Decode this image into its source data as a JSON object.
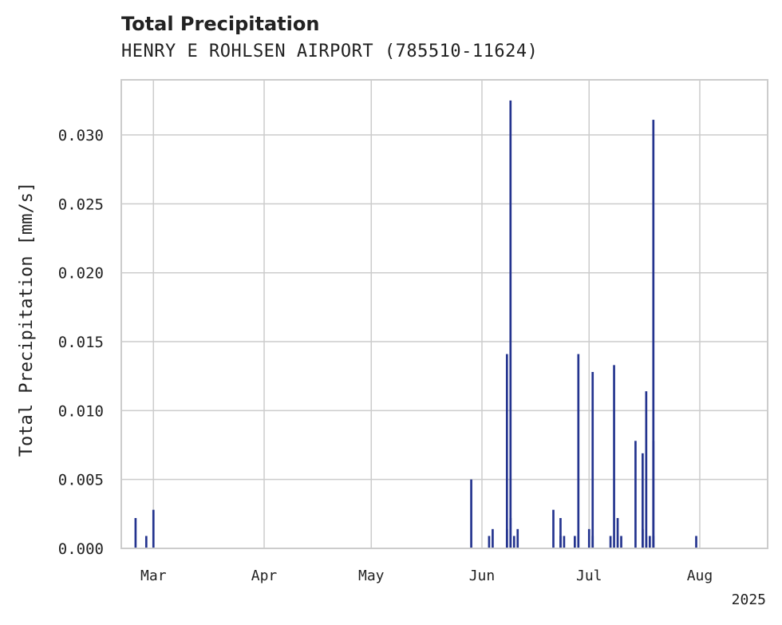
{
  "chart_data": {
    "type": "bar",
    "title": "Total Precipitation",
    "subtitle": "HENRY E ROHLSEN AIRPORT (785510-11624)",
    "xlabel": "",
    "ylabel": "Total Precipitation [mm/s]",
    "year_label": "2025",
    "x_range": [
      "2025-02-20",
      "2025-08-20"
    ],
    "ylim": [
      0,
      0.034
    ],
    "yticks": [
      0.0,
      0.005,
      0.01,
      0.015,
      0.02,
      0.025,
      0.03
    ],
    "ytick_labels": [
      "0.000",
      "0.005",
      "0.010",
      "0.015",
      "0.020",
      "0.025",
      "0.030"
    ],
    "xticks": [
      {
        "date": "2025-03-01",
        "label": "Mar"
      },
      {
        "date": "2025-04-01",
        "label": "Apr"
      },
      {
        "date": "2025-05-01",
        "label": "May"
      },
      {
        "date": "2025-06-01",
        "label": "Jun"
      },
      {
        "date": "2025-07-01",
        "label": "Jul"
      },
      {
        "date": "2025-08-01",
        "label": "Aug"
      }
    ],
    "grid": true,
    "bar_color": "#24348f",
    "series": [
      {
        "name": "Total Precipitation",
        "points": [
          {
            "date": "2025-02-24",
            "value": 0.0022
          },
          {
            "date": "2025-02-27",
            "value": 0.0009
          },
          {
            "date": "2025-03-01",
            "value": 0.0028
          },
          {
            "date": "2025-05-29",
            "value": 0.005
          },
          {
            "date": "2025-06-03",
            "value": 0.0009
          },
          {
            "date": "2025-06-04",
            "value": 0.0014
          },
          {
            "date": "2025-06-08",
            "value": 0.0014
          },
          {
            "date": "2025-06-08",
            "value": 0.0141
          },
          {
            "date": "2025-06-09",
            "value": 0.0325
          },
          {
            "date": "2025-06-09",
            "value": 0.0022
          },
          {
            "date": "2025-06-10",
            "value": 0.0009
          },
          {
            "date": "2025-06-11",
            "value": 0.0014
          },
          {
            "date": "2025-06-21",
            "value": 0.0028
          },
          {
            "date": "2025-06-23",
            "value": 0.0022
          },
          {
            "date": "2025-06-23",
            "value": 0.0009
          },
          {
            "date": "2025-06-24",
            "value": 0.0009
          },
          {
            "date": "2025-06-27",
            "value": 0.0009
          },
          {
            "date": "2025-06-28",
            "value": 0.0141
          },
          {
            "date": "2025-07-01",
            "value": 0.0014
          },
          {
            "date": "2025-07-02",
            "value": 0.0128
          },
          {
            "date": "2025-07-02",
            "value": 0.0009
          },
          {
            "date": "2025-07-07",
            "value": 0.0009
          },
          {
            "date": "2025-07-08",
            "value": 0.0133
          },
          {
            "date": "2025-07-09",
            "value": 0.0022
          },
          {
            "date": "2025-07-10",
            "value": 0.0009
          },
          {
            "date": "2025-07-14",
            "value": 0.0078
          },
          {
            "date": "2025-07-16",
            "value": 0.0069
          },
          {
            "date": "2025-07-16",
            "value": 0.0014
          },
          {
            "date": "2025-07-17",
            "value": 0.0114
          },
          {
            "date": "2025-07-17",
            "value": 0.0009
          },
          {
            "date": "2025-07-18",
            "value": 0.0009
          },
          {
            "date": "2025-07-19",
            "value": 0.0078
          },
          {
            "date": "2025-07-19",
            "value": 0.0311
          },
          {
            "date": "2025-07-19",
            "value": 0.0009
          },
          {
            "date": "2025-07-31",
            "value": 0.0009
          }
        ]
      }
    ]
  }
}
